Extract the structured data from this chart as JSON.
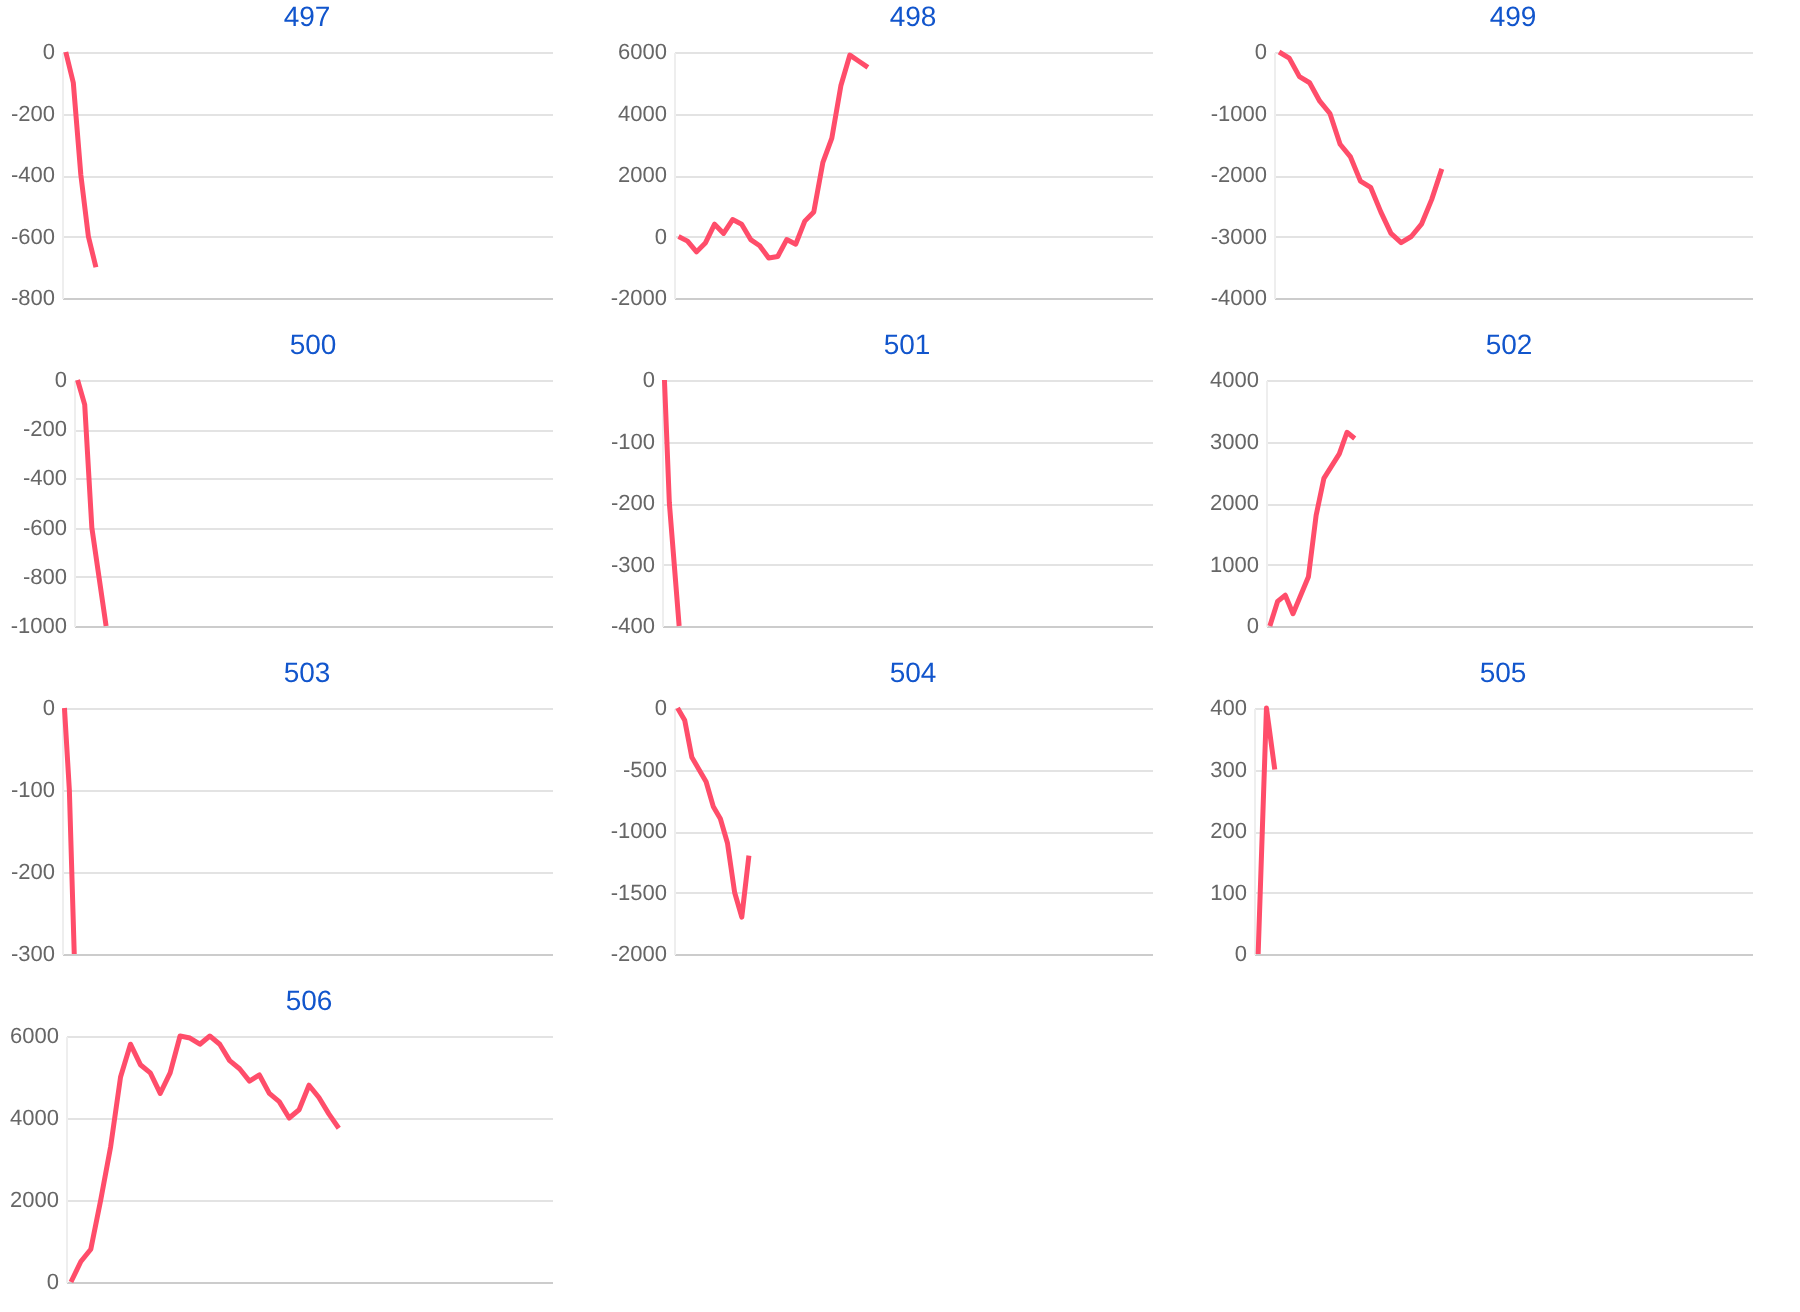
{
  "chart_data": [
    {
      "type": "line",
      "title": "497",
      "categories": [
        null,
        null,
        null,
        null,
        null,
        null,
        null,
        null,
        null,
        null,
        null,
        null,
        null,
        null,
        null,
        null,
        null,
        null,
        null,
        null,
        null,
        null,
        null,
        null,
        null,
        null,
        null,
        null,
        null,
        null,
        null,
        null,
        null,
        null,
        null,
        null,
        null,
        null,
        null,
        null,
        null,
        null,
        null,
        null,
        null,
        null,
        null,
        null,
        null,
        null,
        null,
        null,
        null,
        null,
        null,
        null,
        null,
        null,
        null,
        null,
        null,
        null,
        null,
        null,
        null
      ],
      "series": [
        {
          "color": "#ff4d6a",
          "values": [
            0,
            -100,
            -400,
            -600,
            -700,
            null,
            null,
            null,
            null,
            null,
            null,
            null,
            null,
            null,
            null,
            null,
            null,
            null,
            null,
            null,
            null,
            null,
            null,
            null,
            null,
            null,
            null,
            null,
            null,
            null,
            null,
            null,
            null,
            null,
            null,
            null,
            null,
            null,
            null,
            null,
            null,
            null,
            null,
            null,
            null,
            null,
            null,
            null,
            null,
            null,
            null,
            null,
            null,
            null,
            null,
            null,
            null,
            null,
            null,
            null,
            null,
            null,
            null,
            null,
            null
          ]
        }
      ],
      "ylim": [
        -800,
        0
      ],
      "yticks": [
        -800,
        -600,
        -400,
        -200,
        0
      ],
      "grid": "y"
    },
    {
      "type": "line",
      "title": "498",
      "categories": [
        null,
        null,
        null,
        null,
        null,
        null,
        null,
        null,
        null,
        null,
        null,
        null,
        null,
        null,
        null,
        null,
        null,
        null,
        null,
        null,
        null,
        null,
        null,
        null,
        null,
        null,
        null,
        null,
        null,
        null,
        null,
        null,
        null,
        null,
        null,
        null,
        null,
        null,
        null,
        null,
        null,
        null,
        null,
        null,
        null,
        null,
        null,
        null,
        null,
        null,
        null,
        null,
        null
      ],
      "series": [
        {
          "color": "#ff4d6a",
          "values": [
            0,
            -150,
            -500,
            -200,
            400,
            100,
            550,
            400,
            -100,
            -300,
            -700,
            -650,
            -100,
            -250,
            500,
            800,
            2400,
            3200,
            4900,
            5900,
            5700,
            5500,
            null,
            null,
            null,
            null,
            null,
            null,
            null,
            null,
            null,
            null,
            null,
            null,
            null,
            null,
            null,
            null,
            null,
            null,
            null,
            null,
            null,
            null,
            null,
            null,
            null,
            null,
            null,
            null,
            null,
            null,
            null
          ]
        }
      ],
      "ylim": [
        -2000,
        6000
      ],
      "yticks": [
        -2000,
        0,
        2000,
        4000,
        6000
      ],
      "grid": "y"
    },
    {
      "type": "line",
      "title": "499",
      "categories": [
        null,
        null,
        null,
        null,
        null,
        null,
        null,
        null,
        null,
        null,
        null,
        null,
        null,
        null,
        null,
        null,
        null,
        null,
        null,
        null,
        null,
        null,
        null,
        null,
        null,
        null,
        null,
        null,
        null,
        null,
        null,
        null,
        null,
        null,
        null,
        null,
        null,
        null,
        null,
        null,
        null,
        null,
        null,
        null,
        null,
        null,
        null
      ],
      "series": [
        {
          "color": "#ff4d6a",
          "values": [
            0,
            -100,
            -400,
            -500,
            -800,
            -1000,
            -1500,
            -1700,
            -2100,
            -2200,
            -2600,
            -2950,
            -3100,
            -3000,
            -2800,
            -2400,
            -1900,
            null,
            null,
            null,
            null,
            null,
            null,
            null,
            null,
            null,
            null,
            null,
            null,
            null,
            null,
            null,
            null,
            null,
            null,
            null,
            null,
            null,
            null,
            null,
            null,
            null,
            null,
            null,
            null,
            null,
            null
          ]
        }
      ],
      "ylim": [
        -4000,
        0
      ],
      "yticks": [
        -4000,
        -3000,
        -2000,
        -1000,
        0
      ],
      "grid": "y"
    },
    {
      "type": "line",
      "title": "500",
      "categories": [
        null,
        null,
        null,
        null,
        null,
        null,
        null,
        null,
        null,
        null,
        null,
        null,
        null,
        null,
        null,
        null,
        null,
        null,
        null,
        null,
        null,
        null,
        null,
        null,
        null,
        null,
        null,
        null,
        null,
        null,
        null,
        null,
        null,
        null,
        null,
        null,
        null,
        null,
        null,
        null,
        null,
        null,
        null,
        null,
        null,
        null,
        null,
        null,
        null,
        null,
        null,
        null,
        null,
        null,
        null,
        null,
        null,
        null,
        null,
        null,
        null,
        null,
        null,
        null,
        null,
        null,
        null
      ],
      "series": [
        {
          "color": "#ff4d6a",
          "values": [
            0,
            -100,
            -600,
            -800,
            -1000,
            null,
            null,
            null,
            null,
            null,
            null,
            null,
            null,
            null,
            null,
            null,
            null,
            null,
            null,
            null,
            null,
            null,
            null,
            null,
            null,
            null,
            null,
            null,
            null,
            null,
            null,
            null,
            null,
            null,
            null,
            null,
            null,
            null,
            null,
            null,
            null,
            null,
            null,
            null,
            null,
            null,
            null,
            null,
            null,
            null,
            null,
            null,
            null,
            null,
            null,
            null,
            null,
            null,
            null,
            null,
            null,
            null,
            null,
            null,
            null,
            null,
            null
          ]
        }
      ],
      "ylim": [
        -1000,
        0
      ],
      "yticks": [
        -1000,
        -800,
        -600,
        -400,
        -200,
        0
      ],
      "grid": "y"
    },
    {
      "type": "line",
      "title": "501",
      "categories": [
        null,
        null,
        null,
        null,
        null,
        null,
        null,
        null,
        null,
        null,
        null,
        null,
        null,
        null,
        null,
        null,
        null,
        null,
        null,
        null,
        null,
        null,
        null,
        null,
        null,
        null,
        null,
        null,
        null,
        null,
        null,
        null,
        null,
        null,
        null,
        null,
        null,
        null,
        null,
        null,
        null,
        null,
        null,
        null,
        null,
        null,
        null,
        null,
        null,
        null,
        null,
        null,
        null,
        null,
        null,
        null,
        null,
        null,
        null,
        null,
        null,
        null,
        null,
        null,
        null,
        null,
        null,
        null,
        null,
        null,
        null,
        null,
        null,
        null,
        null,
        null,
        null,
        null,
        null,
        null,
        null,
        null,
        null,
        null,
        null,
        null,
        null,
        null,
        null,
        null,
        null,
        null,
        null,
        null,
        null,
        null,
        null,
        null,
        null,
        null
      ],
      "series": [
        {
          "color": "#ff4d6a",
          "values": [
            0,
            -200,
            -300,
            -400,
            null,
            null,
            null,
            null,
            null,
            null,
            null,
            null,
            null,
            null,
            null,
            null,
            null,
            null,
            null,
            null,
            null,
            null,
            null,
            null,
            null,
            null,
            null,
            null,
            null,
            null,
            null,
            null,
            null,
            null,
            null,
            null,
            null,
            null,
            null,
            null,
            null,
            null,
            null,
            null,
            null,
            null,
            null,
            null,
            null,
            null,
            null,
            null,
            null,
            null,
            null,
            null,
            null,
            null,
            null,
            null,
            null,
            null,
            null,
            null,
            null,
            null,
            null,
            null,
            null,
            null,
            null,
            null,
            null,
            null,
            null,
            null,
            null,
            null,
            null,
            null,
            null,
            null,
            null,
            null,
            null,
            null,
            null,
            null,
            null,
            null,
            null,
            null,
            null,
            null,
            null,
            null,
            null,
            null,
            null,
            null
          ]
        }
      ],
      "ylim": [
        -400,
        0
      ],
      "yticks": [
        -400,
        -300,
        -200,
        -100,
        0
      ],
      "grid": "y"
    },
    {
      "type": "line",
      "title": "502",
      "categories": [
        null,
        null,
        null,
        null,
        null,
        null,
        null,
        null,
        null,
        null,
        null,
        null,
        null,
        null,
        null,
        null,
        null,
        null,
        null,
        null,
        null,
        null,
        null,
        null,
        null,
        null,
        null,
        null,
        null,
        null,
        null,
        null,
        null,
        null,
        null,
        null,
        null,
        null,
        null,
        null,
        null,
        null,
        null,
        null,
        null,
        null,
        null,
        null,
        null,
        null,
        null,
        null,
        null,
        null,
        null,
        null,
        null,
        null,
        null,
        null,
        null,
        null,
        null
      ],
      "series": [
        {
          "color": "#ff4d6a",
          "values": [
            0,
            400,
            500,
            200,
            500,
            800,
            1800,
            2400,
            2600,
            2800,
            3150,
            3050,
            null,
            null,
            null,
            null,
            null,
            null,
            null,
            null,
            null,
            null,
            null,
            null,
            null,
            null,
            null,
            null,
            null,
            null,
            null,
            null,
            null,
            null,
            null,
            null,
            null,
            null,
            null,
            null,
            null,
            null,
            null,
            null,
            null,
            null,
            null,
            null,
            null,
            null,
            null,
            null,
            null,
            null,
            null,
            null,
            null,
            null,
            null,
            null,
            null,
            null,
            null
          ]
        }
      ],
      "ylim": [
        0,
        4000
      ],
      "yticks": [
        0,
        1000,
        2000,
        3000,
        4000
      ],
      "grid": "y"
    },
    {
      "type": "line",
      "title": "503",
      "categories": [
        null,
        null,
        null,
        null,
        null,
        null,
        null,
        null,
        null,
        null,
        null,
        null,
        null,
        null,
        null,
        null,
        null,
        null,
        null,
        null,
        null,
        null,
        null,
        null,
        null,
        null,
        null,
        null,
        null,
        null,
        null,
        null,
        null,
        null,
        null,
        null,
        null,
        null,
        null,
        null,
        null,
        null,
        null,
        null,
        null,
        null,
        null,
        null,
        null,
        null,
        null,
        null,
        null,
        null,
        null,
        null,
        null,
        null,
        null,
        null,
        null,
        null,
        null,
        null,
        null,
        null,
        null,
        null,
        null,
        null,
        null,
        null,
        null,
        null,
        null,
        null,
        null,
        null,
        null,
        null,
        null,
        null,
        null,
        null,
        null,
        null,
        null,
        null,
        null,
        null,
        null,
        null,
        null,
        null,
        null,
        null,
        null,
        null,
        null,
        null
      ],
      "series": [
        {
          "color": "#ff4d6a",
          "values": [
            0,
            -100,
            -300,
            null,
            null,
            null,
            null,
            null,
            null,
            null,
            null,
            null,
            null,
            null,
            null,
            null,
            null,
            null,
            null,
            null,
            null,
            null,
            null,
            null,
            null,
            null,
            null,
            null,
            null,
            null,
            null,
            null,
            null,
            null,
            null,
            null,
            null,
            null,
            null,
            null,
            null,
            null,
            null,
            null,
            null,
            null,
            null,
            null,
            null,
            null,
            null,
            null,
            null,
            null,
            null,
            null,
            null,
            null,
            null,
            null,
            null,
            null,
            null,
            null,
            null,
            null,
            null,
            null,
            null,
            null,
            null,
            null,
            null,
            null,
            null,
            null,
            null,
            null,
            null,
            null,
            null,
            null,
            null,
            null,
            null,
            null,
            null,
            null,
            null,
            null,
            null,
            null,
            null,
            null,
            null,
            null,
            null,
            null,
            null,
            null
          ]
        }
      ],
      "ylim": [
        -300,
        0
      ],
      "yticks": [
        -300,
        -200,
        -100,
        0
      ],
      "grid": "y"
    },
    {
      "type": "line",
      "title": "504",
      "categories": [
        null,
        null,
        null,
        null,
        null,
        null,
        null,
        null,
        null,
        null,
        null,
        null,
        null,
        null,
        null,
        null,
        null,
        null,
        null,
        null,
        null,
        null,
        null,
        null,
        null,
        null,
        null,
        null,
        null,
        null,
        null,
        null,
        null,
        null,
        null,
        null,
        null,
        null,
        null,
        null,
        null,
        null,
        null,
        null,
        null,
        null,
        null,
        null,
        null,
        null,
        null,
        null,
        null,
        null,
        null,
        null,
        null,
        null,
        null,
        null,
        null,
        null,
        null,
        null,
        null,
        null,
        null
      ],
      "series": [
        {
          "color": "#ff4d6a",
          "values": [
            0,
            -100,
            -400,
            -500,
            -600,
            -800,
            -900,
            -1100,
            -1500,
            -1700,
            -1200,
            null,
            null,
            null,
            null,
            null,
            null,
            null,
            null,
            null,
            null,
            null,
            null,
            null,
            null,
            null,
            null,
            null,
            null,
            null,
            null,
            null,
            null,
            null,
            null,
            null,
            null,
            null,
            null,
            null,
            null,
            null,
            null,
            null,
            null,
            null,
            null,
            null,
            null,
            null,
            null,
            null,
            null,
            null,
            null,
            null,
            null,
            null,
            null,
            null,
            null,
            null,
            null,
            null,
            null,
            null,
            null
          ]
        }
      ],
      "ylim": [
        -2000,
        0
      ],
      "yticks": [
        -2000,
        -1500,
        -1000,
        -500,
        0
      ],
      "grid": "y"
    },
    {
      "type": "line",
      "title": "505",
      "categories": [
        null,
        null,
        null,
        null,
        null,
        null,
        null,
        null,
        null,
        null,
        null,
        null,
        null,
        null,
        null,
        null,
        null,
        null,
        null,
        null,
        null,
        null,
        null,
        null,
        null,
        null,
        null,
        null,
        null,
        null,
        null,
        null,
        null,
        null,
        null,
        null,
        null,
        null,
        null,
        null,
        null,
        null,
        null,
        null,
        null,
        null,
        null,
        null,
        null,
        null,
        null,
        null,
        null,
        null,
        null,
        null,
        null,
        null,
        null,
        null
      ],
      "series": [
        {
          "color": "#ff4d6a",
          "values": [
            0,
            400,
            300,
            null,
            null,
            null,
            null,
            null,
            null,
            null,
            null,
            null,
            null,
            null,
            null,
            null,
            null,
            null,
            null,
            null,
            null,
            null,
            null,
            null,
            null,
            null,
            null,
            null,
            null,
            null,
            null,
            null,
            null,
            null,
            null,
            null,
            null,
            null,
            null,
            null,
            null,
            null,
            null,
            null,
            null,
            null,
            null,
            null,
            null,
            null,
            null,
            null,
            null,
            null,
            null,
            null,
            null,
            null,
            null,
            null
          ]
        }
      ],
      "ylim": [
        0,
        400
      ],
      "yticks": [
        0,
        100,
        200,
        300,
        400
      ],
      "grid": "y"
    },
    {
      "type": "line",
      "title": "506",
      "categories": [
        null,
        null,
        null,
        null,
        null,
        null,
        null,
        null,
        null,
        null,
        null,
        null,
        null,
        null,
        null,
        null,
        null,
        null,
        null,
        null,
        null,
        null,
        null,
        null,
        null,
        null,
        null,
        null,
        null,
        null,
        null,
        null,
        null,
        null,
        null,
        null,
        null,
        null,
        null,
        null,
        null,
        null,
        null,
        null,
        null,
        null,
        null,
        null,
        null
      ],
      "series": [
        {
          "color": "#ff4d6a",
          "values": [
            0,
            500,
            800,
            2000,
            3300,
            5000,
            5800,
            5300,
            5100,
            4600,
            5100,
            6000,
            5950,
            5800,
            6000,
            5800,
            5400,
            5200,
            4900,
            5050,
            4600,
            4400,
            4000,
            4200,
            4800,
            4500,
            4100,
            3750,
            null,
            null,
            null,
            null,
            null,
            null,
            null,
            null,
            null,
            null,
            null,
            null,
            null,
            null,
            null,
            null,
            null,
            null,
            null,
            null,
            null
          ]
        }
      ],
      "ylim": [
        0,
        6000
      ],
      "yticks": [
        0,
        2000,
        4000,
        6000
      ],
      "grid": "y"
    }
  ]
}
